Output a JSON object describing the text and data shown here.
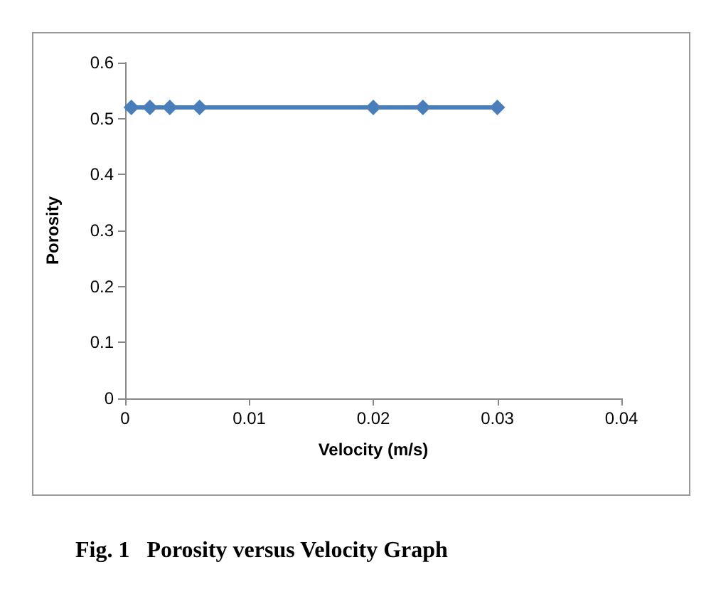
{
  "chart_data": {
    "type": "line",
    "xlabel": "Velocity (m/s)",
    "ylabel": "Porosity",
    "x": [
      0.0005,
      0.002,
      0.0036,
      0.006,
      0.02,
      0.024,
      0.03
    ],
    "series": [
      {
        "color": "#4a7ebb",
        "values": [
          0.52,
          0.52,
          0.52,
          0.52,
          0.52,
          0.52,
          0.52
        ]
      }
    ],
    "xlim": [
      0,
      0.04
    ],
    "xticks": [
      0,
      0.01,
      0.02,
      0.03,
      0.04
    ],
    "ylim": [
      0,
      0.6
    ],
    "yticks": [
      0,
      0.1,
      0.2,
      0.3,
      0.4,
      0.5,
      0.6
    ],
    "grid": false,
    "marker": "diamond",
    "line_style": "solid",
    "annotations": [
      "Fig. 1   Porosity versus Velocity Graph"
    ]
  }
}
